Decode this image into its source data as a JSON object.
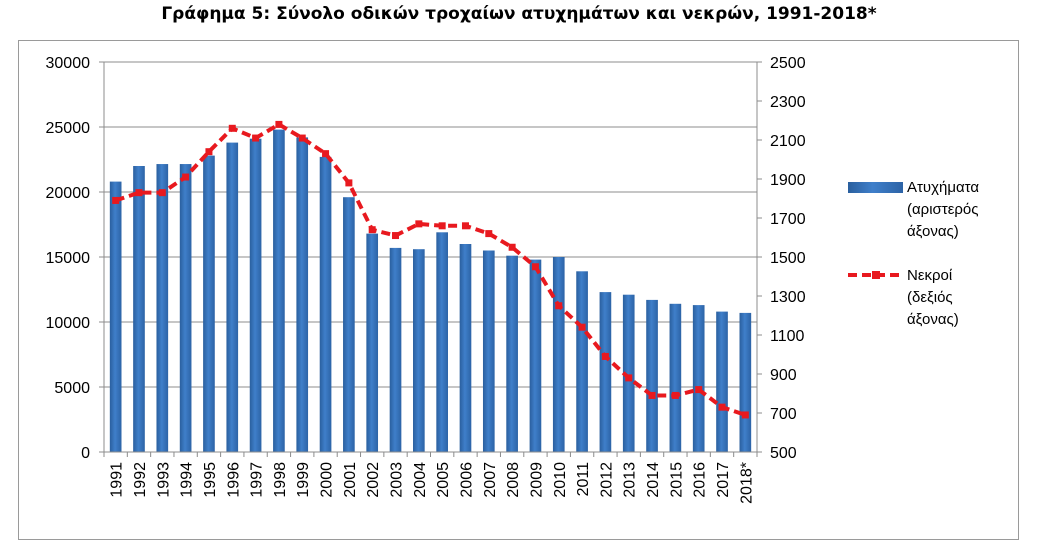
{
  "chart_data": {
    "type": "bar",
    "title": "Γράφημα 5: Σύνολο οδικών τροχαίων ατυχημάτων και νεκρών, 1991-2018*",
    "categories": [
      "1991",
      "1992",
      "1993",
      "1994",
      "1995",
      "1996",
      "1997",
      "1998",
      "1999",
      "2000",
      "2001",
      "2002",
      "2003",
      "2004",
      "2005",
      "2006",
      "2007",
      "2008",
      "2009",
      "2010",
      "2011",
      "2012",
      "2013",
      "2014",
      "2015",
      "2016",
      "2017",
      "2018*"
    ],
    "series": [
      {
        "name": "Ατυχήματα",
        "legend_lines": [
          "Ατυχήματα",
          "(αριστερός",
          "άξονας)"
        ],
        "type": "bar",
        "axis": "left",
        "color": "#3f7fca",
        "values": [
          20800,
          22000,
          22150,
          22150,
          22800,
          23800,
          24100,
          24800,
          24200,
          22700,
          19600,
          16800,
          15700,
          15600,
          16900,
          16000,
          15500,
          15100,
          14800,
          15000,
          13900,
          12300,
          12100,
          11700,
          11400,
          11300,
          10800,
          10700
        ]
      },
      {
        "name": "Νεκροί",
        "legend_lines": [
          "Νεκροί",
          "(δεξιός",
          "άξονας)"
        ],
        "type": "line",
        "axis": "right",
        "color": "#e8191f",
        "values": [
          1790,
          1830,
          1830,
          1910,
          2040,
          2160,
          2110,
          2180,
          2110,
          2030,
          1880,
          1640,
          1610,
          1670,
          1660,
          1660,
          1620,
          1550,
          1450,
          1250,
          1140,
          990,
          880,
          790,
          790,
          820,
          730,
          690
        ]
      }
    ],
    "y_left": {
      "min": 0,
      "max": 30000,
      "ticks": [
        "0",
        "5000",
        "10000",
        "15000",
        "20000",
        "25000",
        "30000"
      ]
    },
    "y_right": {
      "min": 500,
      "max": 2500,
      "ticks": [
        "500",
        "700",
        "900",
        "1100",
        "1300",
        "1500",
        "1700",
        "1900",
        "2100",
        "2300",
        "2500"
      ]
    },
    "grid": true,
    "legend_position": "right"
  }
}
